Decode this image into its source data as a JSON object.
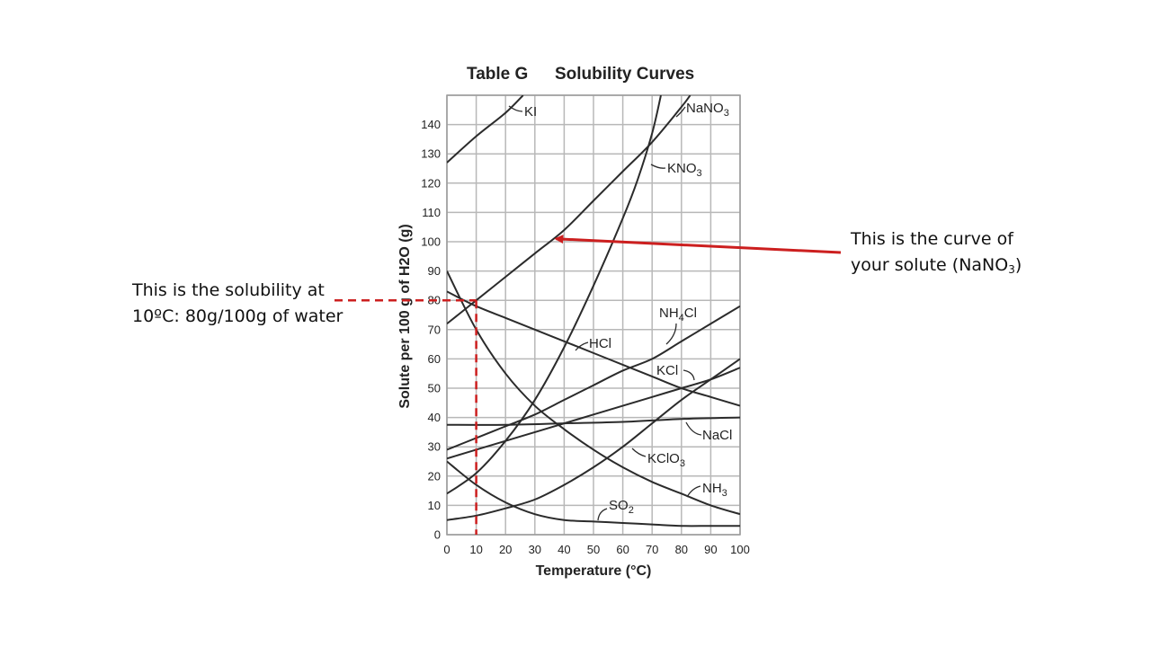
{
  "chart_data": {
    "type": "line",
    "title_prefix": "Table G",
    "title": "Solubility Curves",
    "xlabel": "Temperature (°C)",
    "ylabel": "Solute per 100 g of H2O (g)",
    "xlim": [
      0,
      100
    ],
    "ylim": [
      0,
      150
    ],
    "grid": true,
    "x_ticks": [
      "0",
      "10",
      "20",
      "30",
      "40",
      "50",
      "60",
      "70",
      "80",
      "90",
      "100"
    ],
    "y_ticks": [
      "0",
      "10",
      "20",
      "30",
      "40",
      "50",
      "60",
      "70",
      "80",
      "90",
      "100",
      "110",
      "120",
      "130",
      "140"
    ],
    "series": [
      {
        "name": "KI",
        "x": [
          0,
          10,
          20,
          26
        ],
        "y": [
          127,
          136,
          144,
          150
        ]
      },
      {
        "name": "NaNO3",
        "x": [
          0,
          10,
          20,
          30,
          40,
          50,
          60,
          70,
          80,
          83
        ],
        "y": [
          72,
          80,
          88,
          96,
          104,
          114,
          124,
          134,
          146,
          150
        ]
      },
      {
        "name": "KNO3",
        "x": [
          0,
          10,
          20,
          30,
          40,
          50,
          60,
          65,
          70,
          73
        ],
        "y": [
          14,
          21,
          32,
          46,
          64,
          85,
          108,
          121,
          137,
          150
        ]
      },
      {
        "name": "NH4Cl",
        "x": [
          0,
          10,
          20,
          30,
          40,
          50,
          60,
          70,
          80,
          90,
          100
        ],
        "y": [
          29,
          33,
          37,
          41,
          46,
          51,
          56,
          60,
          66,
          72,
          78
        ]
      },
      {
        "name": "HCl",
        "x": [
          0,
          10,
          20,
          30,
          40,
          50,
          60,
          70,
          80,
          90,
          100
        ],
        "y": [
          83,
          78,
          74,
          70,
          66,
          62,
          58,
          54,
          50,
          47,
          44
        ]
      },
      {
        "name": "KCl",
        "x": [
          0,
          10,
          20,
          30,
          40,
          50,
          60,
          70,
          80,
          90,
          100
        ],
        "y": [
          26,
          29,
          32,
          35,
          38,
          41,
          44,
          47,
          50,
          53,
          57
        ]
      },
      {
        "name": "NaCl",
        "x": [
          0,
          20,
          40,
          60,
          80,
          100
        ],
        "y": [
          37.5,
          37.5,
          38,
          38.5,
          39.5,
          40
        ]
      },
      {
        "name": "KClO3",
        "x": [
          0,
          10,
          20,
          30,
          40,
          50,
          60,
          70,
          80,
          90,
          100
        ],
        "y": [
          5,
          6.5,
          9,
          12,
          17,
          23,
          30,
          38,
          46,
          53,
          60
        ]
      },
      {
        "name": "NH3",
        "x": [
          0,
          10,
          20,
          30,
          40,
          50,
          60,
          70,
          80,
          90,
          100
        ],
        "y": [
          90,
          70,
          55,
          44,
          36,
          29,
          23,
          18,
          14,
          10,
          7
        ]
      },
      {
        "name": "SO2",
        "x": [
          0,
          10,
          20,
          30,
          40,
          50,
          60,
          70,
          80,
          90,
          100
        ],
        "y": [
          25,
          17,
          11,
          7,
          5,
          4.5,
          4,
          3.5,
          3,
          3,
          3
        ]
      }
    ],
    "series_labels": [
      {
        "text": "KI",
        "sub": "",
        "after": ""
      },
      {
        "text": "NaNO",
        "sub": "3",
        "after": ""
      },
      {
        "text": "KNO",
        "sub": "3",
        "after": ""
      },
      {
        "text": "NH",
        "sub": "4",
        "after": "Cl"
      },
      {
        "text": "HCl",
        "sub": "",
        "after": ""
      },
      {
        "text": "KCl",
        "sub": "",
        "after": ""
      },
      {
        "text": "NaCl",
        "sub": "",
        "after": ""
      },
      {
        "text": "KClO",
        "sub": "3",
        "after": ""
      },
      {
        "text": "NH",
        "sub": "3",
        "after": ""
      },
      {
        "text": "SO",
        "sub": "2",
        "after": ""
      }
    ],
    "annotations": {
      "reference_point": {
        "x": 10,
        "y": 80
      },
      "arrow_target": {
        "x": 36,
        "y": 101
      }
    }
  },
  "notes": {
    "left_line1": "This is the solubility at",
    "left_line2": "10ºC: 80g/100g  of water",
    "right_line1": "This is the curve of",
    "right_line2_pre": "your solute (NaNO",
    "right_line2_sub": "3",
    "right_line2_post": ")"
  },
  "colors": {
    "curve": "#2b2b2b",
    "grid": "#b8b8b8",
    "annotation": "#cc1f1f"
  }
}
